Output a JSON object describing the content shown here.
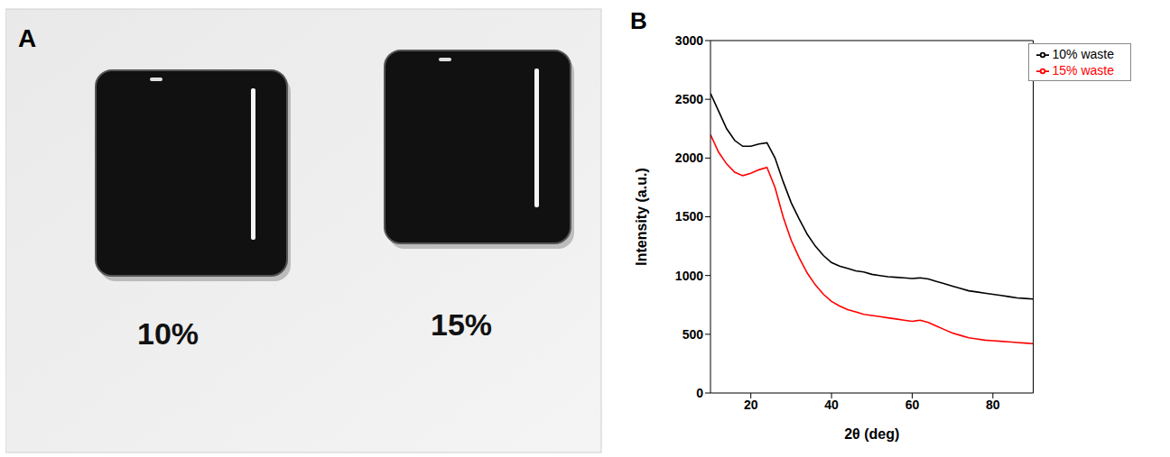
{
  "photo": {
    "panel": "A",
    "labels": [
      "10%",
      "15%"
    ]
  },
  "chart_panel": "B",
  "chart_data": {
    "type": "line",
    "x_label": "2θ (deg)",
    "y_label": "Intensity (a.u.)",
    "xlim": [
      10,
      90
    ],
    "xticks": [
      20,
      40,
      60,
      80
    ],
    "ylim": [
      0,
      3000
    ],
    "yticks": [
      0,
      500,
      1000,
      1500,
      2000,
      2500,
      3000
    ],
    "legend": "upper right",
    "x": [
      10,
      12,
      14,
      16,
      18,
      20,
      22,
      24,
      26,
      28,
      30,
      32,
      34,
      36,
      38,
      40,
      42,
      44,
      46,
      48,
      50,
      52,
      54,
      56,
      58,
      60,
      62,
      64,
      66,
      68,
      70,
      72,
      74,
      76,
      78,
      80,
      82,
      84,
      86,
      88,
      90
    ],
    "series": [
      {
        "name": "10% waste",
        "color": "#000000",
        "values": [
          2550,
          2400,
          2250,
          2150,
          2100,
          2100,
          2120,
          2130,
          2000,
          1800,
          1620,
          1480,
          1350,
          1250,
          1170,
          1110,
          1080,
          1060,
          1040,
          1030,
          1010,
          1000,
          990,
          985,
          980,
          975,
          980,
          970,
          950,
          930,
          910,
          890,
          870,
          860,
          850,
          840,
          830,
          820,
          810,
          805,
          800
        ]
      },
      {
        "name": "15% waste",
        "color": "#ff0000",
        "values": [
          2200,
          2050,
          1950,
          1880,
          1850,
          1870,
          1900,
          1920,
          1750,
          1500,
          1300,
          1150,
          1020,
          920,
          840,
          780,
          740,
          710,
          690,
          670,
          660,
          650,
          640,
          630,
          620,
          610,
          620,
          600,
          570,
          540,
          510,
          490,
          470,
          460,
          450,
          445,
          440,
          435,
          430,
          425,
          420
        ]
      }
    ]
  }
}
